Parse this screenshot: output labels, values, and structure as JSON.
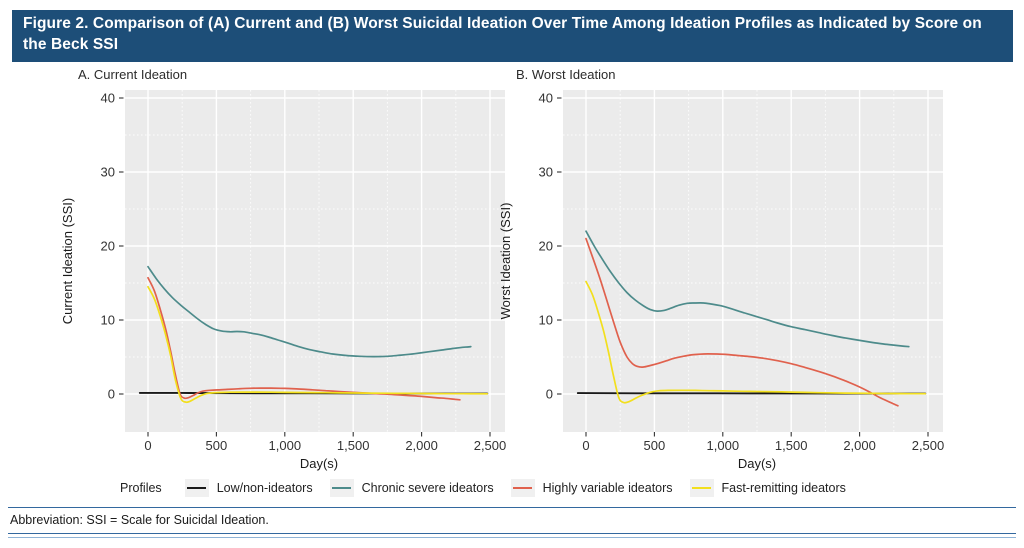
{
  "header": {
    "title": "Figure 2. Comparison of (A) Current and (B) Worst Suicidal Ideation Over Time Among Ideation Profiles as Indicated by Score on the Beck SSI"
  },
  "footer": {
    "abbreviation": "Abbreviation: SSI = Scale for Suicidal Ideation."
  },
  "legend": {
    "label": "Profiles",
    "items": [
      {
        "label": "Low/non-ideators",
        "color": "#1a1a1a"
      },
      {
        "label": "Chronic severe ideators",
        "color": "#4d8b8b"
      },
      {
        "label": "Highly variable ideators",
        "color": "#e0614d"
      },
      {
        "label": "Fast-remitting ideators",
        "color": "#f2df1d"
      }
    ]
  },
  "colors": {
    "header_bg": "#1d4e78",
    "header_text": "#ffffff",
    "panel_bg": "#ebebeb",
    "grid": "#ffffff",
    "rule_blue": "#33689e",
    "rule_blue_light": "#8fb3d6"
  },
  "chart_data": [
    {
      "type": "line",
      "title": "A. Current Ideation",
      "xlabel": "Day(s)",
      "ylabel": "Current Ideation (SSI)",
      "xlim": [
        -168,
        2610
      ],
      "ylim": [
        -5.1,
        41.1
      ],
      "grid": "on",
      "legend_position": "bottom",
      "xticks": [
        0,
        500,
        1000,
        1500,
        2000,
        2500
      ],
      "xtick_labels": [
        "0",
        "500",
        "1,000",
        "1,500",
        "2,000",
        "2,500"
      ],
      "yticks": [
        0,
        10,
        20,
        30,
        40
      ],
      "ytick_labels": [
        "0",
        "10",
        "20",
        "30",
        "40"
      ],
      "series": [
        {
          "name": "Low/non-ideators",
          "color": "#1a1a1a",
          "width": 1.9,
          "points": [
            [
              -60,
              0.15
            ],
            [
              300,
              0.13
            ],
            [
              800,
              0.1
            ],
            [
              1500,
              0.08
            ],
            [
              2100,
              0.06
            ],
            [
              2480,
              0.05
            ]
          ]
        },
        {
          "name": "Chronic severe ideators",
          "color": "#4d8b8b",
          "width": 1.7,
          "points": [
            [
              0,
              17.2
            ],
            [
              60,
              15.6
            ],
            [
              120,
              14.2
            ],
            [
              180,
              13.0
            ],
            [
              240,
              12.0
            ],
            [
              300,
              11.1
            ],
            [
              360,
              10.2
            ],
            [
              420,
              9.4
            ],
            [
              480,
              8.8
            ],
            [
              540,
              8.5
            ],
            [
              600,
              8.4
            ],
            [
              650,
              8.45
            ],
            [
              700,
              8.4
            ],
            [
              760,
              8.2
            ],
            [
              820,
              8.0
            ],
            [
              880,
              7.7
            ],
            [
              950,
              7.3
            ],
            [
              1020,
              6.9
            ],
            [
              1100,
              6.4
            ],
            [
              1180,
              6.0
            ],
            [
              1260,
              5.7
            ],
            [
              1350,
              5.4
            ],
            [
              1450,
              5.2
            ],
            [
              1550,
              5.1
            ],
            [
              1650,
              5.05
            ],
            [
              1750,
              5.1
            ],
            [
              1850,
              5.25
            ],
            [
              1950,
              5.45
            ],
            [
              2050,
              5.7
            ],
            [
              2150,
              5.95
            ],
            [
              2250,
              6.2
            ],
            [
              2360,
              6.4
            ]
          ]
        },
        {
          "name": "Highly variable ideators",
          "color": "#e0614d",
          "width": 1.7,
          "points": [
            [
              0,
              15.7
            ],
            [
              45,
              14.0
            ],
            [
              90,
              11.4
            ],
            [
              130,
              8.7
            ],
            [
              165,
              5.8
            ],
            [
              200,
              2.6
            ],
            [
              235,
              0.0
            ],
            [
              265,
              -0.55
            ],
            [
              295,
              -0.5
            ],
            [
              330,
              -0.2
            ],
            [
              365,
              0.15
            ],
            [
              400,
              0.38
            ],
            [
              450,
              0.5
            ],
            [
              510,
              0.55
            ],
            [
              580,
              0.62
            ],
            [
              660,
              0.7
            ],
            [
              740,
              0.77
            ],
            [
              820,
              0.8
            ],
            [
              900,
              0.8
            ],
            [
              1000,
              0.75
            ],
            [
              1100,
              0.67
            ],
            [
              1200,
              0.57
            ],
            [
              1300,
              0.45
            ],
            [
              1400,
              0.33
            ],
            [
              1500,
              0.22
            ],
            [
              1600,
              0.12
            ],
            [
              1700,
              0.02
            ],
            [
              1800,
              -0.08
            ],
            [
              1900,
              -0.2
            ],
            [
              2000,
              -0.33
            ],
            [
              2100,
              -0.48
            ],
            [
              2200,
              -0.63
            ],
            [
              2280,
              -0.78
            ]
          ]
        },
        {
          "name": "Fast-remitting ideators",
          "color": "#f2df1d",
          "width": 1.7,
          "points": [
            [
              0,
              14.5
            ],
            [
              45,
              12.9
            ],
            [
              90,
              10.5
            ],
            [
              130,
              7.9
            ],
            [
              165,
              5.2
            ],
            [
              200,
              1.9
            ],
            [
              240,
              -0.6
            ],
            [
              275,
              -1.1
            ],
            [
              305,
              -1.0
            ],
            [
              335,
              -0.7
            ],
            [
              365,
              -0.4
            ],
            [
              395,
              -0.15
            ],
            [
              430,
              0.05
            ],
            [
              470,
              0.15
            ],
            [
              520,
              0.2
            ],
            [
              600,
              0.24
            ],
            [
              700,
              0.26
            ],
            [
              800,
              0.26
            ],
            [
              950,
              0.23
            ],
            [
              1100,
              0.2
            ],
            [
              1300,
              0.17
            ],
            [
              1500,
              0.14
            ],
            [
              1700,
              0.11
            ],
            [
              1900,
              0.08
            ],
            [
              2100,
              0.06
            ],
            [
              2300,
              0.04
            ],
            [
              2480,
              0.03
            ]
          ]
        }
      ]
    },
    {
      "type": "line",
      "title": "B. Worst Ideation",
      "xlabel": "Day(s)",
      "ylabel": "Worst Ideation (SSI)",
      "xlim": [
        -168,
        2610
      ],
      "ylim": [
        -5.1,
        41.1
      ],
      "grid": "on",
      "legend_position": "bottom",
      "xticks": [
        0,
        500,
        1000,
        1500,
        2000,
        2500
      ],
      "xtick_labels": [
        "0",
        "500",
        "1,000",
        "1,500",
        "2,000",
        "2,500"
      ],
      "yticks": [
        0,
        10,
        20,
        30,
        40
      ],
      "ytick_labels": [
        "0",
        "10",
        "20",
        "30",
        "40"
      ],
      "series": [
        {
          "name": "Low/non-ideators",
          "color": "#1a1a1a",
          "width": 1.9,
          "points": [
            [
              -60,
              0.12
            ],
            [
              500,
              0.1
            ],
            [
              1200,
              0.08
            ],
            [
              1900,
              0.06
            ],
            [
              2480,
              0.05
            ]
          ]
        },
        {
          "name": "Chronic severe ideators",
          "color": "#4d8b8b",
          "width": 1.7,
          "points": [
            [
              0,
              22.0
            ],
            [
              60,
              20.0
            ],
            [
              120,
              18.2
            ],
            [
              180,
              16.5
            ],
            [
              240,
              15.0
            ],
            [
              300,
              13.7
            ],
            [
              360,
              12.7
            ],
            [
              420,
              11.9
            ],
            [
              470,
              11.4
            ],
            [
              520,
              11.2
            ],
            [
              570,
              11.3
            ],
            [
              620,
              11.6
            ],
            [
              680,
              12.0
            ],
            [
              740,
              12.25
            ],
            [
              800,
              12.3
            ],
            [
              860,
              12.3
            ],
            [
              920,
              12.15
            ],
            [
              980,
              11.95
            ],
            [
              1040,
              11.65
            ],
            [
              1100,
              11.3
            ],
            [
              1160,
              10.95
            ],
            [
              1240,
              10.5
            ],
            [
              1320,
              10.05
            ],
            [
              1400,
              9.6
            ],
            [
              1500,
              9.1
            ],
            [
              1600,
              8.7
            ],
            [
              1700,
              8.3
            ],
            [
              1800,
              7.9
            ],
            [
              1900,
              7.55
            ],
            [
              2000,
              7.25
            ],
            [
              2100,
              6.95
            ],
            [
              2200,
              6.7
            ],
            [
              2300,
              6.5
            ],
            [
              2360,
              6.4
            ]
          ]
        },
        {
          "name": "Highly variable ideators",
          "color": "#e0614d",
          "width": 1.7,
          "points": [
            [
              0,
              21.0
            ],
            [
              50,
              18.4
            ],
            [
              100,
              15.7
            ],
            [
              150,
              12.8
            ],
            [
              200,
              9.8
            ],
            [
              250,
              7.0
            ],
            [
              300,
              5.0
            ],
            [
              340,
              4.1
            ],
            [
              380,
              3.7
            ],
            [
              420,
              3.65
            ],
            [
              470,
              3.85
            ],
            [
              530,
              4.15
            ],
            [
              590,
              4.5
            ],
            [
              650,
              4.85
            ],
            [
              710,
              5.1
            ],
            [
              770,
              5.28
            ],
            [
              830,
              5.38
            ],
            [
              890,
              5.42
            ],
            [
              950,
              5.4
            ],
            [
              1020,
              5.35
            ],
            [
              1100,
              5.22
            ],
            [
              1200,
              5.05
            ],
            [
              1300,
              4.82
            ],
            [
              1400,
              4.5
            ],
            [
              1500,
              4.1
            ],
            [
              1600,
              3.6
            ],
            [
              1700,
              3.05
            ],
            [
              1800,
              2.45
            ],
            [
              1900,
              1.75
            ],
            [
              2000,
              0.95
            ],
            [
              2080,
              0.2
            ],
            [
              2160,
              -0.6
            ],
            [
              2280,
              -1.6
            ]
          ]
        },
        {
          "name": "Fast-remitting ideators",
          "color": "#f2df1d",
          "width": 1.7,
          "points": [
            [
              0,
              15.2
            ],
            [
              45,
              13.5
            ],
            [
              90,
              11.0
            ],
            [
              130,
              8.4
            ],
            [
              165,
              5.6
            ],
            [
              200,
              2.5
            ],
            [
              240,
              -0.5
            ],
            [
              275,
              -1.15
            ],
            [
              305,
              -1.1
            ],
            [
              335,
              -0.85
            ],
            [
              370,
              -0.5
            ],
            [
              405,
              -0.2
            ],
            [
              445,
              0.08
            ],
            [
              485,
              0.3
            ],
            [
              530,
              0.43
            ],
            [
              600,
              0.49
            ],
            [
              700,
              0.5
            ],
            [
              800,
              0.48
            ],
            [
              900,
              0.45
            ],
            [
              1000,
              0.42
            ],
            [
              1150,
              0.37
            ],
            [
              1300,
              0.32
            ],
            [
              1500,
              0.25
            ],
            [
              1700,
              0.18
            ],
            [
              1900,
              0.12
            ],
            [
              2100,
              0.08
            ],
            [
              2300,
              0.05
            ],
            [
              2480,
              0.04
            ]
          ]
        }
      ]
    }
  ]
}
